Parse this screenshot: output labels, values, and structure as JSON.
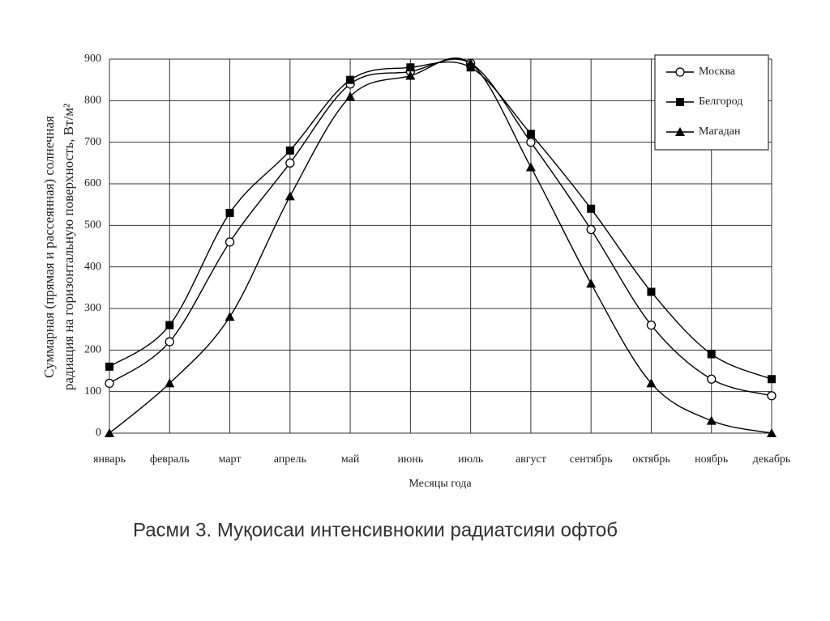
{
  "chart_data": {
    "type": "line",
    "caption": "Расми 3. Муқоисаи интенсивнокии радиатсияи офтоб",
    "xlabel": "Месяцы года",
    "ylabel": [
      "Суммарная (прямая и рассеянная) солнечная",
      "радиация на горизонтальную поверхность, Вт/м²"
    ],
    "categories": [
      "январь",
      "февраль",
      "март",
      "апрель",
      "май",
      "июнь",
      "июль",
      "август",
      "сентябрь",
      "октябрь",
      "ноябрь",
      "декабрь"
    ],
    "series": [
      {
        "name": "Москва",
        "color": "#000000",
        "marker": "circle",
        "values": [
          120,
          220,
          460,
          650,
          840,
          870,
          890,
          700,
          490,
          260,
          130,
          90
        ]
      },
      {
        "name": "Белгород",
        "color": "#000000",
        "marker": "square",
        "values": [
          160,
          260,
          530,
          680,
          850,
          880,
          880,
          720,
          540,
          340,
          190,
          130
        ]
      },
      {
        "name": "Магадан",
        "color": "#000000",
        "marker": "triangle",
        "values": [
          0,
          120,
          280,
          570,
          810,
          860,
          890,
          640,
          360,
          120,
          30,
          0
        ]
      }
    ],
    "ylim": [
      0,
      900
    ],
    "yticks": [
      0,
      100,
      200,
      300,
      400,
      500,
      600,
      700,
      800,
      900
    ],
    "grid": true,
    "legend": "upper right"
  }
}
